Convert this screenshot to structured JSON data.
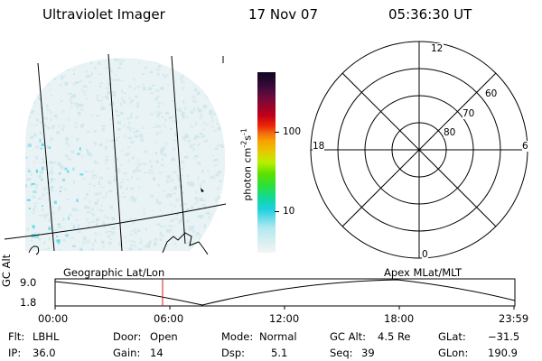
{
  "header": {
    "title": "Ultraviolet Imager",
    "date": "17 Nov 07",
    "time": "05:36:30 UT"
  },
  "colorbar": {
    "label": "photon cm",
    "label_sup1": "-2",
    "label_mid": "s",
    "label_sup2": "-1",
    "ticks": [
      "100",
      "10"
    ]
  },
  "polar_plot": {
    "mlt_labels": {
      "top": "12",
      "left": "18",
      "right": "6",
      "bottom": "0"
    },
    "lat_labels": [
      "60",
      "70",
      "80"
    ]
  },
  "projection_labels": {
    "left": "Geographic Lat/Lon",
    "right": "Apex MLat/MLT"
  },
  "altitude_plot": {
    "ylabel_1": "GC",
    "ylabel_2": "Alt",
    "yticks": [
      "9.0",
      "1.8"
    ],
    "xticks": [
      "00:00",
      "06:00",
      "12:00",
      "18:00",
      "23:59"
    ],
    "marker_time": "05:36"
  },
  "info": {
    "flt_label": "Flt:",
    "flt_value": "LBHL",
    "ip_label": "IP:",
    "ip_value": "36.0",
    "door_label": "Door:",
    "door_value": "Open",
    "gain_label": "Gain:",
    "gain_value": "14",
    "mode_label": "Mode:",
    "mode_value": "Normal",
    "dsp_label": "Dsp:",
    "dsp_value": "5.1",
    "gcalt_label": "GC Alt:",
    "gcalt_value": "4.5 Re",
    "seq_label": "Seq:",
    "seq_value": "39",
    "glat_label": "GLat:",
    "glat_value": "−31.5",
    "glon_label": "GLon:",
    "glon_value": "190.9"
  },
  "colors": {
    "marker": "#d02020",
    "aurora_light": "#cfe6ea",
    "aurora_cyan": "#5fd8e6"
  }
}
